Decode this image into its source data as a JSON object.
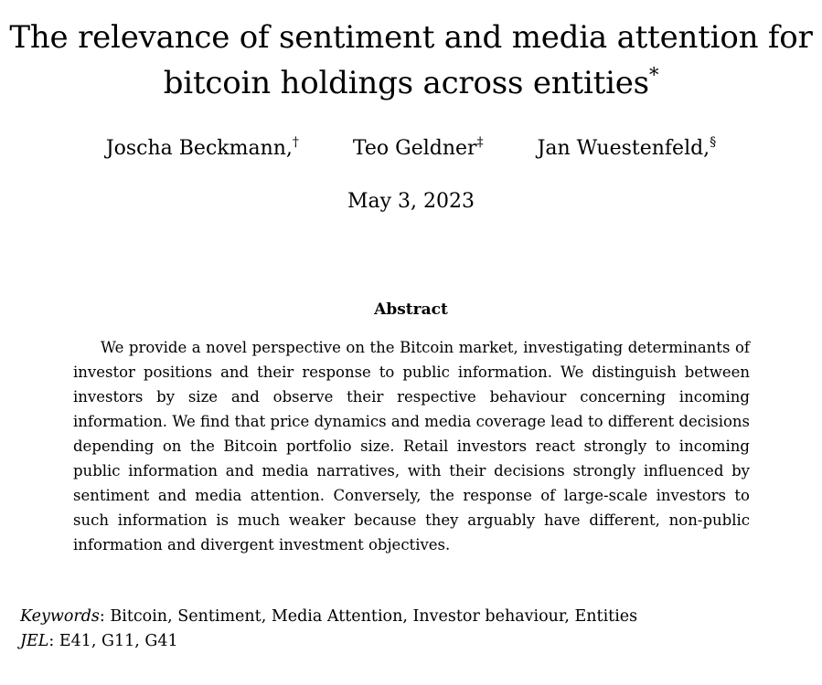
{
  "paper": {
    "title_line1": "The relevance of sentiment and media attention for",
    "title_line2": "bitcoin holdings across entities",
    "title_mark": "*",
    "authors": [
      {
        "name": "Joscha Beckmann,",
        "mark": "†"
      },
      {
        "name": "Teo Geldner",
        "mark": "‡"
      },
      {
        "name": "Jan Wuestenfeld,",
        "mark": "§"
      }
    ],
    "date": "May 3, 2023",
    "abstract_heading": "Abstract",
    "abstract_text": "We provide a novel perspective on the Bitcoin market, investigating determinants of investor positions and their response to public information. We distinguish between investors by size and observe their respective behaviour concerning incoming information. We find that price dynamics and media coverage lead to different decisions depending on the Bitcoin portfolio size. Retail investors react strongly to incoming public information and media narratives, with their decisions strongly influenced by sentiment and media attention. Conversely, the response of large-scale investors to such information is much weaker because they arguably have different, non-public information and divergent investment objectives.",
    "keywords_label": "Keywords",
    "keywords_text": ": Bitcoin, Sentiment, Media Attention, Investor behaviour, Entities",
    "jel_label": "JEL",
    "jel_text": ": E41, G11, G41"
  }
}
